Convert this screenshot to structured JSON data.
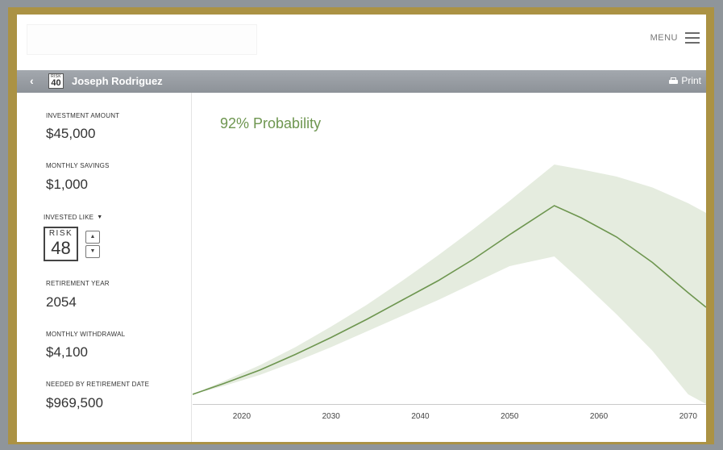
{
  "header": {
    "menu_label": "MENU"
  },
  "client": {
    "risk_label": "RISK",
    "risk_score": "40",
    "name": "Joseph Rodriguez",
    "print_label": "Print"
  },
  "sidebar": {
    "investment_amount": {
      "label": "INVESTMENT AMOUNT",
      "value": "$45,000"
    },
    "monthly_savings": {
      "label": "MONTHLY SAVINGS",
      "value": "$1,000"
    },
    "invested_like": {
      "label": "INVESTED LIKE",
      "risk_label": "RISK",
      "risk_value": "48"
    },
    "retirement_year": {
      "label": "RETIREMENT YEAR",
      "value": "2054"
    },
    "monthly_withdrawal": {
      "label": "MONTHLY WITHDRAWAL",
      "value": "$4,100"
    },
    "needed_by": {
      "label": "NEEDED BY RETIREMENT DATE",
      "value": "$969,500"
    }
  },
  "chart_data": {
    "type": "area",
    "title": "92% Probability",
    "x_ticks": [
      2020,
      2030,
      2040,
      2050,
      2060,
      2070
    ],
    "xlim": [
      2014.5,
      2072
    ],
    "ylim": [
      0,
      100
    ],
    "colors": {
      "band": "#e5ecdf",
      "line": "#6e9650",
      "title": "#6e9650"
    },
    "series": [
      {
        "role": "median",
        "x": [
          2014.5,
          2018,
          2022,
          2026,
          2030,
          2034,
          2038,
          2042,
          2046,
          2050,
          2055,
          2058,
          2062,
          2066,
          2070,
          2072
        ],
        "y": [
          4,
          8.5,
          14,
          20.5,
          27.5,
          35,
          43,
          51,
          60,
          70,
          82,
          77,
          69,
          58.5,
          46,
          40
        ]
      },
      {
        "role": "upper",
        "x": [
          2014.5,
          2018,
          2022,
          2026,
          2030,
          2034,
          2038,
          2042,
          2046,
          2050,
          2055,
          2058,
          2062,
          2066,
          2070,
          2072
        ],
        "y": [
          4,
          9.5,
          16,
          23.5,
          32,
          41,
          51,
          61.5,
          72.5,
          84,
          99,
          97,
          94,
          89.5,
          83,
          79
        ]
      },
      {
        "role": "lower",
        "x": [
          2014.5,
          2018,
          2022,
          2026,
          2030,
          2034,
          2038,
          2042,
          2046,
          2050,
          2055,
          2058,
          2062,
          2066,
          2070,
          2072
        ],
        "y": [
          4,
          7.5,
          12,
          17.5,
          23.5,
          30,
          36.5,
          43,
          50,
          57,
          61,
          51,
          37,
          22,
          4,
          0
        ]
      }
    ]
  }
}
